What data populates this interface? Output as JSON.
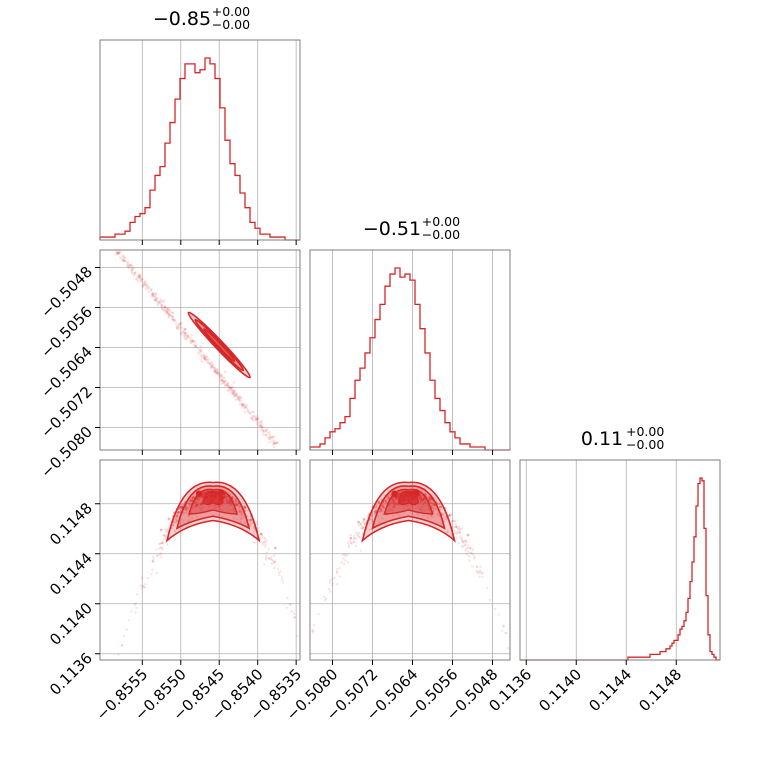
{
  "chart_data": {
    "type": "corner",
    "color": "#d62728",
    "grid": true,
    "parameters": [
      {
        "title": {
          "main": "−0.85",
          "sup": "+0.00",
          "sub": "−0.00"
        },
        "range": [
          -0.85605,
          -0.85345
        ],
        "ticks": [
          -0.8555,
          -0.855,
          -0.8545,
          -0.854,
          -0.8535
        ],
        "tick_labels": [
          "−0.8555",
          "−0.8550",
          "−0.8545",
          "−0.8540",
          "−0.8535"
        ],
        "histogram": [
          1,
          1,
          1,
          2,
          2,
          3,
          6,
          8,
          9,
          11,
          17,
          22,
          25,
          33,
          40,
          48,
          55,
          60,
          60,
          57,
          58,
          62,
          60,
          55,
          45,
          34,
          26,
          22,
          16,
          11,
          6,
          4,
          2,
          2,
          1,
          1,
          1,
          0,
          0,
          0
        ]
      },
      {
        "title": {
          "main": "−0.51",
          "sup": "+0.00",
          "sub": "−0.00"
        },
        "range": [
          -0.50845,
          -0.50445
        ],
        "ticks": [
          -0.508,
          -0.5072,
          -0.5064,
          -0.5056,
          -0.5048
        ],
        "tick_labels": [
          "−0.5080",
          "−0.5072",
          "−0.5064",
          "−0.5056",
          "−0.5048"
        ],
        "histogram": [
          1,
          1,
          2,
          4,
          6,
          7,
          9,
          11,
          17,
          23,
          27,
          32,
          37,
          43,
          48,
          54,
          58,
          60,
          57,
          58,
          56,
          48,
          40,
          32,
          23,
          17,
          13,
          9,
          6,
          4,
          2,
          2,
          1,
          1,
          1,
          0,
          0,
          0,
          0,
          0
        ]
      },
      {
        "title": {
          "main": "0.11",
          "sup": "+0.00",
          "sub": "−0.00"
        },
        "range": [
          0.11355,
          0.11515
        ],
        "ticks": [
          0.1136,
          0.114,
          0.1144,
          0.1148
        ],
        "tick_labels": [
          "0.1136",
          "0.1140",
          "0.1144",
          "0.1148"
        ],
        "histogram": [
          0,
          0,
          0,
          0,
          0,
          0,
          0,
          0,
          0,
          0,
          0,
          0,
          0,
          0,
          0,
          0,
          0,
          0,
          0,
          0,
          0,
          0,
          0,
          0,
          0,
          0,
          0,
          0,
          0,
          0,
          0,
          0,
          0,
          0,
          0,
          0,
          0,
          0,
          0,
          0,
          0,
          0,
          0,
          0,
          0,
          0,
          0,
          0,
          0,
          0,
          0,
          0,
          0,
          0,
          1,
          1,
          1,
          1,
          1,
          1,
          1,
          1,
          1,
          1,
          1,
          2,
          2,
          2,
          2,
          2,
          3,
          3,
          3,
          4,
          4,
          5,
          6,
          7,
          7,
          9,
          11,
          12,
          14,
          17,
          22,
          28,
          35,
          44,
          55,
          63,
          65,
          64,
          47,
          23,
          9,
          3,
          2,
          1,
          0,
          0
        ]
      }
    ],
    "samples_2d": [
      {
        "x_param": 0,
        "y_param": 1,
        "shape": "line",
        "from": [
          -0.85595,
          -0.50425
        ],
        "to": [
          -0.85375,
          -0.50835
        ],
        "core_from": [
          -0.8549,
          -0.5057
        ],
        "core_to": [
          -0.8541,
          -0.507
        ],
        "density_center": [
          -0.8545,
          -0.50635
        ]
      },
      {
        "x_param": 0,
        "y_param": 2,
        "shape": "arch",
        "x_center": -0.85458,
        "y_peak": 0.1149,
        "x_extent": [
          -0.8559,
          -0.8536
        ],
        "y_range_shown": [
          0.11355,
          0.11515
        ],
        "density_center": [
          -0.85458,
          0.11487
        ]
      },
      {
        "x_param": 1,
        "y_param": 2,
        "shape": "arch",
        "x_center": -0.50648,
        "y_peak": 0.1149,
        "x_extent": [
          -0.5084,
          -0.5045
        ],
        "y_range_shown": [
          0.11355,
          0.11515
        ],
        "density_center": [
          -0.50648,
          0.11487
        ]
      }
    ]
  }
}
